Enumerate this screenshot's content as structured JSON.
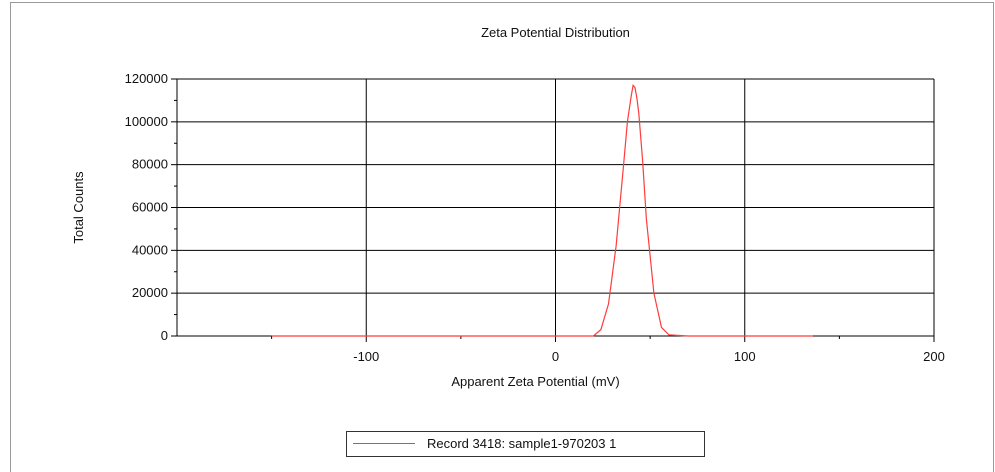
{
  "chart_data": {
    "type": "line",
    "title": "Zeta Potential Distribution",
    "xlabel": "Apparent Zeta Potential (mV)",
    "ylabel": "Total Counts",
    "xlim": [
      -200,
      200
    ],
    "ylim": [
      0,
      120000
    ],
    "xticks": [
      -100,
      0,
      100,
      200
    ],
    "yticks": [
      0,
      20000,
      40000,
      60000,
      80000,
      100000,
      120000
    ],
    "grid": true,
    "legend": "bottom-center",
    "series": [
      {
        "name": "Record 3418: sample1-970203 1",
        "color": "#ff3b3b",
        "x": [
          -150,
          20,
          24,
          28,
          32,
          36,
          38,
          40,
          41,
          42,
          43,
          44,
          46,
          48,
          52,
          56,
          60,
          70,
          136
        ],
        "y": [
          0,
          0,
          3000,
          15000,
          42000,
          80000,
          100000,
          112000,
          117000,
          116000,
          111000,
          104000,
          82000,
          55000,
          20000,
          4000,
          500,
          0,
          0
        ]
      }
    ]
  }
}
